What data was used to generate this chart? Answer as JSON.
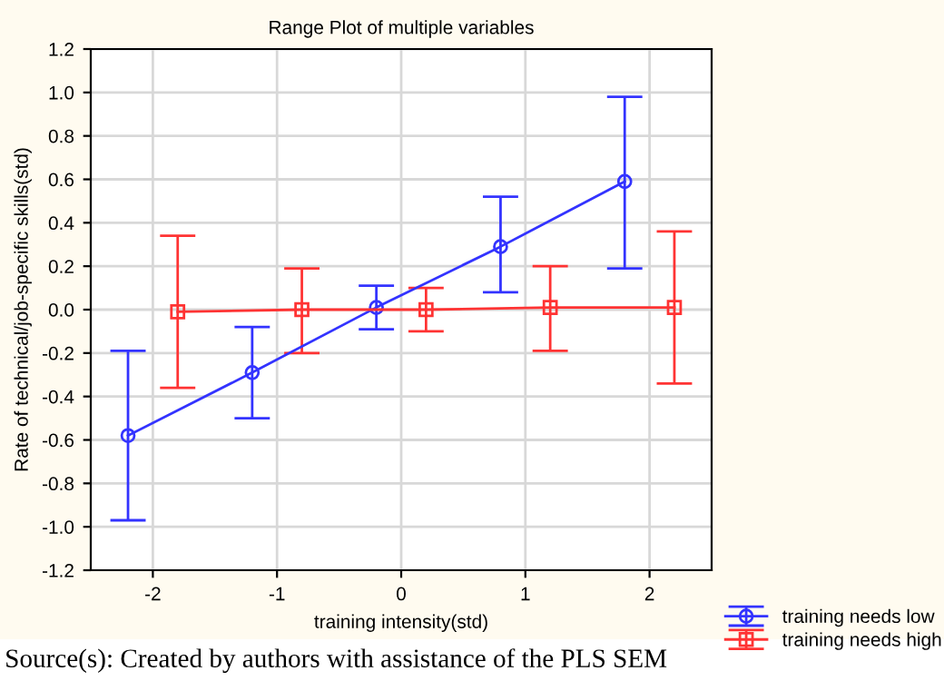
{
  "chart_data": {
    "type": "line",
    "title": "Range Plot of multiple variables",
    "xlabel": "training intensity(std)",
    "ylabel": "Rate of technical/job-specific skills(std)",
    "series": [
      {
        "name": "training needs low",
        "color": "#3333ff",
        "marker": "circle",
        "x": [
          -2.2,
          -1.2,
          -0.2,
          0.8,
          1.8
        ],
        "values": [
          -0.58,
          -0.29,
          0.01,
          0.29,
          0.59
        ],
        "errors": [
          [
            -0.97,
            -0.19
          ],
          [
            -0.5,
            -0.08
          ],
          [
            -0.09,
            0.11
          ],
          [
            0.08,
            0.52
          ],
          [
            0.19,
            0.98
          ]
        ]
      },
      {
        "name": "training needs high",
        "color": "#ff3333",
        "marker": "square",
        "x": [
          -1.8,
          -0.8,
          0.2,
          1.2,
          2.2
        ],
        "values": [
          -0.01,
          0.0,
          0.0,
          0.01,
          0.01
        ],
        "errors": [
          [
            -0.36,
            0.34
          ],
          [
            -0.2,
            0.19
          ],
          [
            -0.1,
            0.1
          ],
          [
            -0.19,
            0.2
          ],
          [
            -0.34,
            0.36
          ]
        ]
      }
    ],
    "xlim": [
      -2.5,
      2.5
    ],
    "xticks": [
      {
        "value": -2,
        "label": "-2"
      },
      {
        "value": -1,
        "label": "-1"
      },
      0,
      1,
      2
    ],
    "ylim": [
      -1.2,
      1.2
    ],
    "yticks": [
      {
        "value": -1.2,
        "label": "-1.2"
      },
      {
        "value": -1.0,
        "label": "-1.0"
      },
      {
        "value": -0.8,
        "label": "-0.8"
      },
      {
        "value": -0.6,
        "label": "-0.6"
      },
      {
        "value": -0.4,
        "label": "-0.4"
      },
      {
        "value": -0.2,
        "label": "-0.2"
      },
      {
        "value": 0.0,
        "label": "0.0"
      },
      {
        "value": 0.2,
        "label": "0.2"
      },
      {
        "value": 0.4,
        "label": "0.4"
      },
      {
        "value": 0.6,
        "label": "0.6"
      },
      {
        "value": 0.8,
        "label": "0.8"
      },
      {
        "value": 1.0,
        "label": "1.0"
      },
      {
        "value": 1.2,
        "label": "1.2"
      }
    ],
    "grid": true,
    "legend": "bottom right",
    "line_style": "solid",
    "annotations": [
      "Source(s): Created by authors with assistance of the PLS SEM"
    ]
  }
}
